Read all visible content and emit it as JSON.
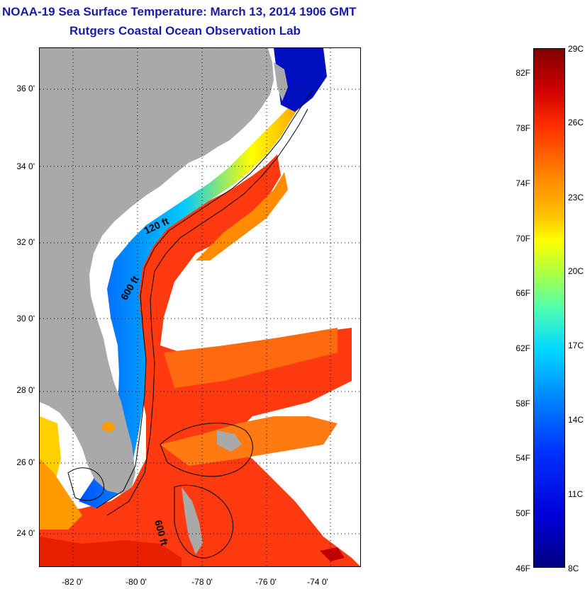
{
  "title": "NOAA-19 Sea Surface Temperature:  March 13, 2014 1906 GMT",
  "subtitle": "Rutgers Coastal Ocean Observation Lab",
  "map": {
    "lat_labels": [
      "36 0'",
      "34 0'",
      "32 0'",
      "30 0'",
      "28 0'",
      "26 0'",
      "24 0'"
    ],
    "lon_labels": [
      "-82 0'",
      "-80 0'",
      "-78 0'",
      "-76 0'",
      "-74 0'"
    ],
    "contour_labels": [
      "120 ft",
      "600 ft",
      "600 ft"
    ],
    "colors": {
      "land": "#a9a9a9",
      "cloud": "#ffffff",
      "cold": "#0000c8",
      "cool": "#00b4ff",
      "mid": "#ffff00",
      "warm": "#ff8000",
      "hot": "#e00000"
    }
  },
  "colorbar": {
    "fahrenheit_labels": [
      "82F",
      "78F",
      "74F",
      "70F",
      "66F",
      "62F",
      "58F",
      "54F",
      "50F",
      "46F"
    ],
    "celsius_labels": [
      "29C",
      "26C",
      "23C",
      "20C",
      "17C",
      "14C",
      "11C",
      "8C"
    ]
  }
}
